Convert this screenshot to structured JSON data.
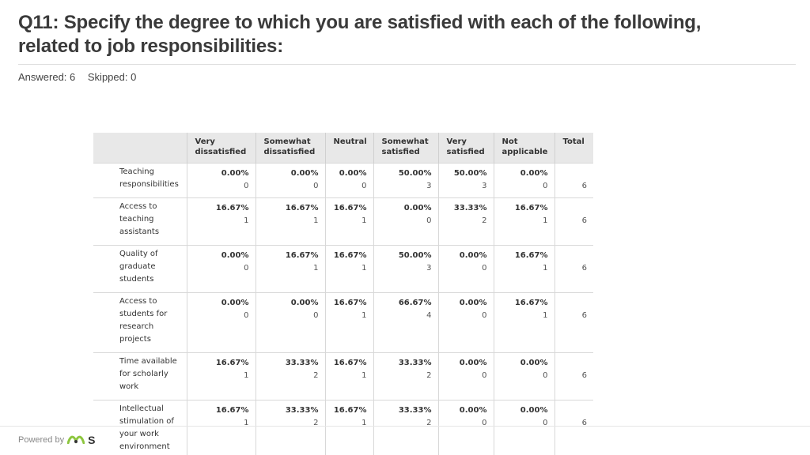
{
  "question": {
    "title": "Q11: Specify the degree to which you are satisfied with each of the following, related to job responsibilities:",
    "answered": "Answered: 6",
    "skipped": "Skipped: 0"
  },
  "table": {
    "columns": [
      "Very dissatisfied",
      "Somewhat dissatisfied",
      "Neutral",
      "Somewhat satisfied",
      "Very satisfied",
      "Not applicable",
      "Total"
    ],
    "rows": [
      {
        "label": "Teaching responsibilities",
        "cells": [
          {
            "pct": "0.00%",
            "count": "0"
          },
          {
            "pct": "0.00%",
            "count": "0"
          },
          {
            "pct": "0.00%",
            "count": "0"
          },
          {
            "pct": "50.00%",
            "count": "3"
          },
          {
            "pct": "50.00%",
            "count": "3"
          },
          {
            "pct": "0.00%",
            "count": "0"
          }
        ],
        "total": "6"
      },
      {
        "label": "Access to teaching assistants",
        "cells": [
          {
            "pct": "16.67%",
            "count": "1"
          },
          {
            "pct": "16.67%",
            "count": "1"
          },
          {
            "pct": "16.67%",
            "count": "1"
          },
          {
            "pct": "0.00%",
            "count": "0"
          },
          {
            "pct": "33.33%",
            "count": "2"
          },
          {
            "pct": "16.67%",
            "count": "1"
          }
        ],
        "total": "6"
      },
      {
        "label": "Quality of graduate students",
        "cells": [
          {
            "pct": "0.00%",
            "count": "0"
          },
          {
            "pct": "16.67%",
            "count": "1"
          },
          {
            "pct": "16.67%",
            "count": "1"
          },
          {
            "pct": "50.00%",
            "count": "3"
          },
          {
            "pct": "0.00%",
            "count": "0"
          },
          {
            "pct": "16.67%",
            "count": "1"
          }
        ],
        "total": "6"
      },
      {
        "label": "Access to students for research projects",
        "cells": [
          {
            "pct": "0.00%",
            "count": "0"
          },
          {
            "pct": "0.00%",
            "count": "0"
          },
          {
            "pct": "16.67%",
            "count": "1"
          },
          {
            "pct": "66.67%",
            "count": "4"
          },
          {
            "pct": "0.00%",
            "count": "0"
          },
          {
            "pct": "16.67%",
            "count": "1"
          }
        ],
        "total": "6"
      },
      {
        "label": "Time available for scholarly work",
        "cells": [
          {
            "pct": "16.67%",
            "count": "1"
          },
          {
            "pct": "33.33%",
            "count": "2"
          },
          {
            "pct": "16.67%",
            "count": "1"
          },
          {
            "pct": "33.33%",
            "count": "2"
          },
          {
            "pct": "0.00%",
            "count": "0"
          },
          {
            "pct": "0.00%",
            "count": "0"
          }
        ],
        "total": "6"
      },
      {
        "label": "Intellectual stimulation of your work environment",
        "cells": [
          {
            "pct": "16.67%",
            "count": "1"
          },
          {
            "pct": "33.33%",
            "count": "2"
          },
          {
            "pct": "16.67%",
            "count": "1"
          },
          {
            "pct": "33.33%",
            "count": "2"
          },
          {
            "pct": "0.00%",
            "count": "0"
          },
          {
            "pct": "0.00%",
            "count": "0"
          }
        ],
        "total": "6"
      }
    ]
  },
  "footer": {
    "powered_by": "Powered by",
    "brand_letter": "S",
    "logo_icon": "surveymonkey-logo-icon"
  },
  "colors": {
    "title_text": "#3a3a3a",
    "header_bg": "#e8e8e8",
    "border": "#d8d8d8",
    "logo_green": "#8dc63f"
  }
}
